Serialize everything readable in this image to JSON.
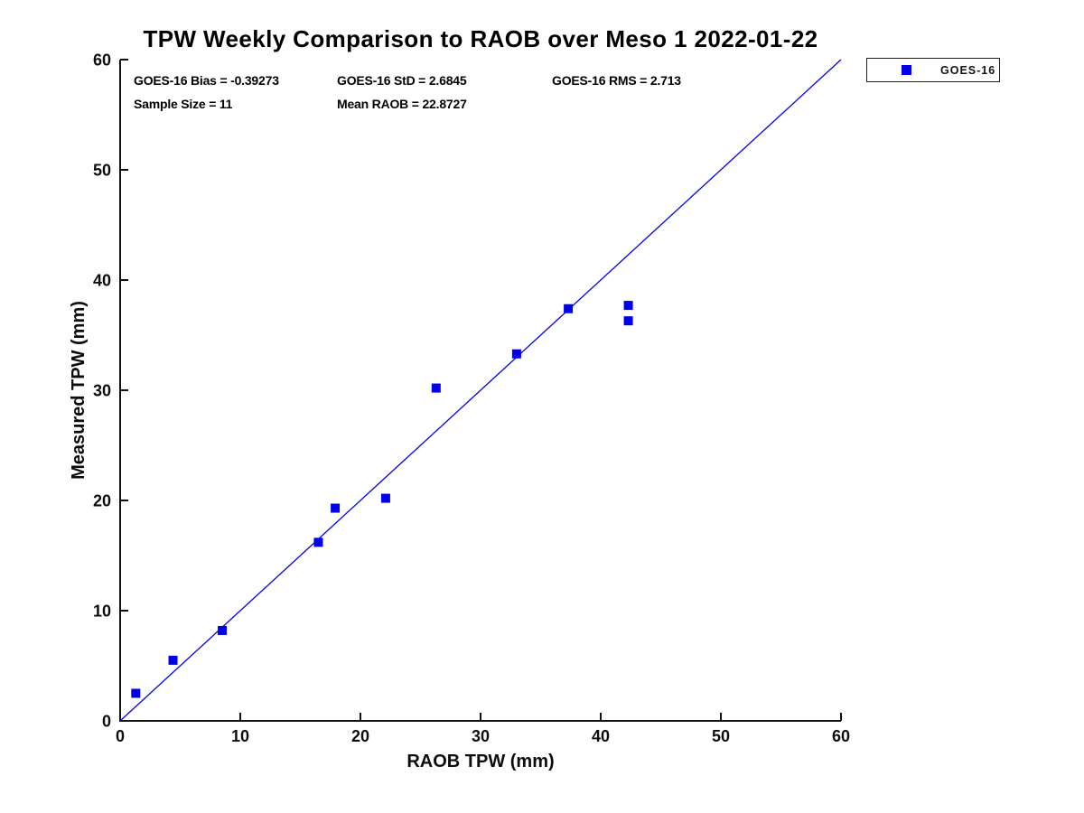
{
  "figure": {
    "title": "TPW Weekly Comparison to RAOB over Meso 1 2022-01-22",
    "stats": {
      "bias": "GOES-16 Bias = -0.39273",
      "std": "GOES-16 StD = 2.6845",
      "rms": "GOES-16 RMS = 2.713",
      "sample_size": "Sample Size = 11",
      "mean_raob": "Mean RAOB = 22.8727"
    }
  },
  "legend": {
    "label": "GOES-16",
    "marker": "blue-square"
  },
  "colors": {
    "series_blue": "#0000ee",
    "axis": "#111111",
    "text": "#000000"
  },
  "chart_data": {
    "type": "scatter",
    "title": "TPW Weekly Comparison to RAOB over Meso 1 2022-01-22",
    "xlabel": "RAOB TPW (mm)",
    "ylabel": "Measured TPW (mm)",
    "xlim": [
      0,
      60
    ],
    "ylim": [
      0,
      60
    ],
    "xticks": [
      0,
      10,
      20,
      30,
      40,
      50,
      60
    ],
    "yticks": [
      0,
      10,
      20,
      30,
      40,
      50,
      60
    ],
    "grid": false,
    "legend_position": "outside-top-right",
    "series": [
      {
        "name": "GOES-16",
        "marker": "square",
        "color": "#0000ee",
        "points": [
          [
            1.3,
            2.5
          ],
          [
            4.4,
            5.5
          ],
          [
            8.5,
            8.2
          ],
          [
            16.5,
            16.2
          ],
          [
            17.9,
            19.3
          ],
          [
            22.1,
            20.2
          ],
          [
            26.3,
            30.2
          ],
          [
            33.0,
            33.3
          ],
          [
            37.3,
            37.4
          ],
          [
            42.3,
            37.7
          ],
          [
            42.3,
            36.3
          ]
        ]
      }
    ],
    "reference_line": {
      "name": "one-to-one-line",
      "from": [
        0,
        0
      ],
      "to": [
        60,
        60
      ],
      "color": "#0000ee",
      "width": 1.3
    }
  }
}
